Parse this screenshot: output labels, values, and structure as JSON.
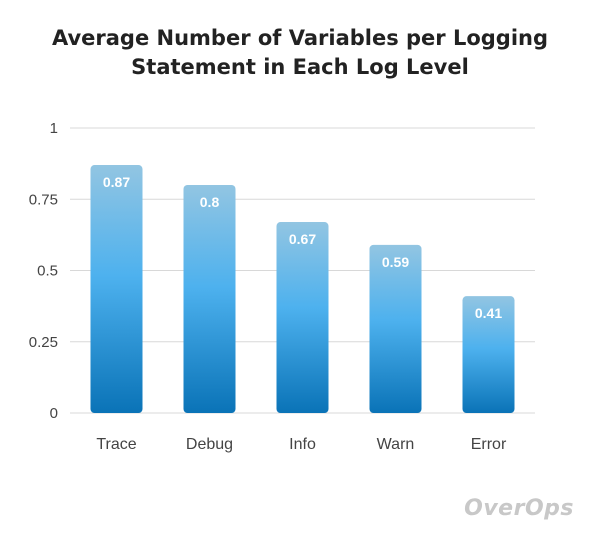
{
  "chart_data": {
    "type": "bar",
    "title_line1": "Average Number of Variables per Logging",
    "title_line2": "Statement in Each Log Level",
    "categories": [
      "Trace",
      "Debug",
      "Info",
      "Warn",
      "Error"
    ],
    "values": [
      0.87,
      0.8,
      0.67,
      0.59,
      0.41
    ],
    "value_labels": [
      "0.87",
      "0.8",
      "0.67",
      "0.59",
      "0.41"
    ],
    "ylim": [
      0,
      1
    ],
    "yticks": [
      0,
      0.25,
      0.5,
      0.75,
      1
    ],
    "ytick_labels": [
      "0",
      "0.25",
      "0.5",
      "0.75",
      "1"
    ],
    "grid": true,
    "colors": {
      "bar_top": "#92c5e2",
      "bar_mid": "#4db1ee",
      "bar_bottom": "#0a73b7",
      "grid": "#d8d8d8",
      "label": "#ffffff",
      "axis_text": "#444444"
    }
  },
  "brand": {
    "logo_text": "OverOps"
  }
}
